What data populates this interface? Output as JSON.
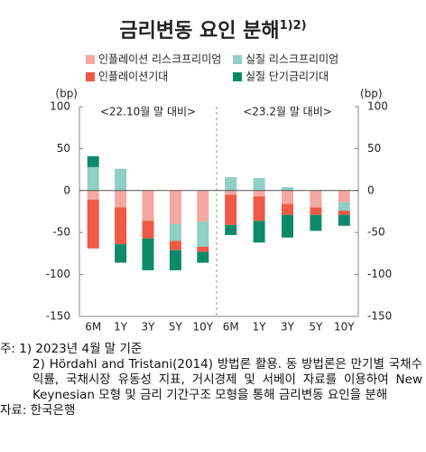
{
  "title": "금리변동 요인 분해",
  "title_note": "1)2)",
  "chart_data": [
    {
      "type": "bar",
      "stacked": true,
      "subtitle": "<22.10월 말 대비>",
      "ylabel": "(bp)",
      "axis_side": "left",
      "categories": [
        "6M",
        "1Y",
        "3Y",
        "5Y",
        "10Y"
      ],
      "ylim": [
        -150,
        100
      ],
      "yticks": [
        100,
        50,
        0,
        -50,
        -100,
        -150
      ],
      "series": [
        {
          "name": "인플레이션 리스크프리미엄",
          "color": "#f4a9a0",
          "values": [
            -11,
            -20,
            -36,
            -40,
            -37
          ]
        },
        {
          "name": "실질 리스크프리미엄",
          "color": "#8fcfc4",
          "values": [
            28,
            26,
            0,
            -20,
            -30
          ]
        },
        {
          "name": "인플레이션기대",
          "color": "#f05a46",
          "values": [
            -58,
            -44,
            -21,
            -11,
            -6
          ]
        },
        {
          "name": "실질 단기금리기대",
          "color": "#0e8a6a",
          "values": [
            13,
            -22,
            -38,
            -24,
            -13
          ]
        }
      ]
    },
    {
      "type": "bar",
      "stacked": true,
      "subtitle": "<23.2월 말 대비>",
      "ylabel": "(bp)",
      "axis_side": "right",
      "categories": [
        "6M",
        "1Y",
        "3Y",
        "5Y",
        "10Y"
      ],
      "ylim": [
        -150,
        100
      ],
      "yticks": [
        100,
        50,
        0,
        -50,
        -100,
        -150
      ],
      "series": [
        {
          "name": "인플레이션 리스크프리미엄",
          "color": "#f4a9a0",
          "values": [
            -5,
            -7,
            -16,
            -20,
            -14
          ]
        },
        {
          "name": "실질 리스크프리미엄",
          "color": "#8fcfc4",
          "values": [
            16,
            15,
            4,
            0,
            -10
          ]
        },
        {
          "name": "인플레이션기대",
          "color": "#f05a46",
          "values": [
            -36,
            -29,
            -13,
            -9,
            -5
          ]
        },
        {
          "name": "실질 단기금리기대",
          "color": "#0e8a6a",
          "values": [
            -12,
            -26,
            -27,
            -19,
            -13
          ]
        }
      ]
    }
  ],
  "notes": {
    "label": "주:",
    "items": [
      "1) 2023년 4월 말 기준",
      "2) Hördahl and Tristani(2014) 방법론 활용. 동 방법론은 만기별 국채수익률, 국채시장 유동성 지표, 거시경제 및 서베이 자료를 이용하여 New Keynesian 모형 및 금리 기간구조 모형을 통해 금리변동 요인을 분해"
    ],
    "source": "자료: 한국은행"
  }
}
